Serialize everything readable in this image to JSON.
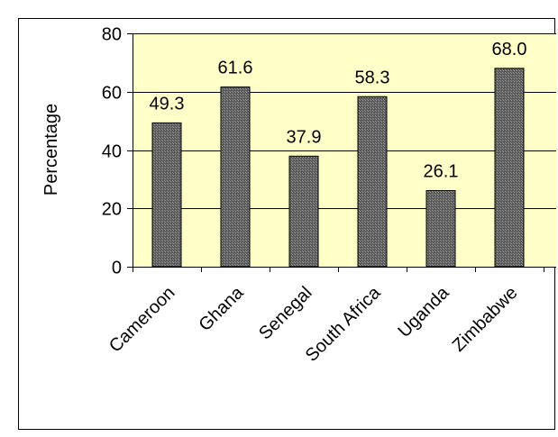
{
  "chart_data": {
    "type": "bar",
    "title": "",
    "xlabel": "",
    "ylabel": "Percentage",
    "categories": [
      "Cameroon",
      "Ghana",
      "Senegal",
      "South Africa",
      "Uganda",
      "Zimbabwe"
    ],
    "values": [
      49.3,
      61.6,
      37.9,
      58.3,
      26.1,
      68.0
    ],
    "value_labels": [
      "49.3",
      "61.6",
      "37.9",
      "58.3",
      "26.1",
      "68.0"
    ],
    "ylim": [
      0,
      80
    ],
    "yticks": [
      0,
      20,
      40,
      60,
      80
    ],
    "grid": true,
    "legend": "none"
  },
  "colors": {
    "plot_background": "#ffffc8",
    "bar_fill": "#6e6e6e",
    "bar_edge": "#000000",
    "gridline": "#000000",
    "frame_border": "#000000"
  }
}
